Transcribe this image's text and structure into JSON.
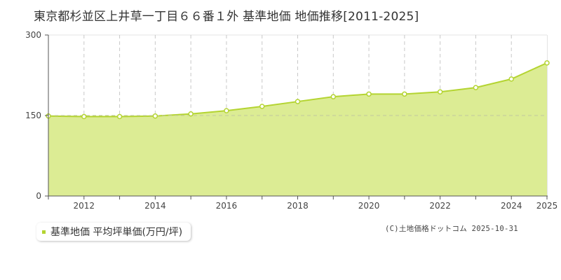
{
  "title": "東京都杉並区上井草一丁目６６番１外 基準地価 地価推移[2011-2025]",
  "legend": {
    "label": "基準地価 平均坪単価(万円/坪)",
    "color": "#b4d431"
  },
  "credit": "(C)土地価格ドットコム 2025-10-31",
  "colors": {
    "line": "#b4d431",
    "fill": "#dcec94",
    "grid": "#c8c8c8",
    "axis": "#555555"
  },
  "chart_data": {
    "type": "area",
    "title": "東京都杉並区上井草一丁目６６番１外 基準地価 地価推移[2011-2025]",
    "xlabel": "",
    "ylabel": "",
    "x": [
      2011,
      2012,
      2013,
      2014,
      2015,
      2016,
      2017,
      2018,
      2019,
      2020,
      2021,
      2022,
      2023,
      2024,
      2025
    ],
    "series": [
      {
        "name": "基準地価 平均坪単価(万円/坪)",
        "values": [
          149,
          148,
          148,
          149,
          153,
          159,
          167,
          176,
          185,
          190,
          190,
          194,
          202,
          218,
          248
        ]
      }
    ],
    "ylim": [
      0,
      300
    ],
    "yticks": [
      "0",
      "150",
      "300"
    ],
    "xticks": [
      "2012",
      "2014",
      "2016",
      "2018",
      "2020",
      "2022",
      "2024",
      "2025"
    ],
    "grid": true,
    "legend_position": "bottom-left"
  }
}
